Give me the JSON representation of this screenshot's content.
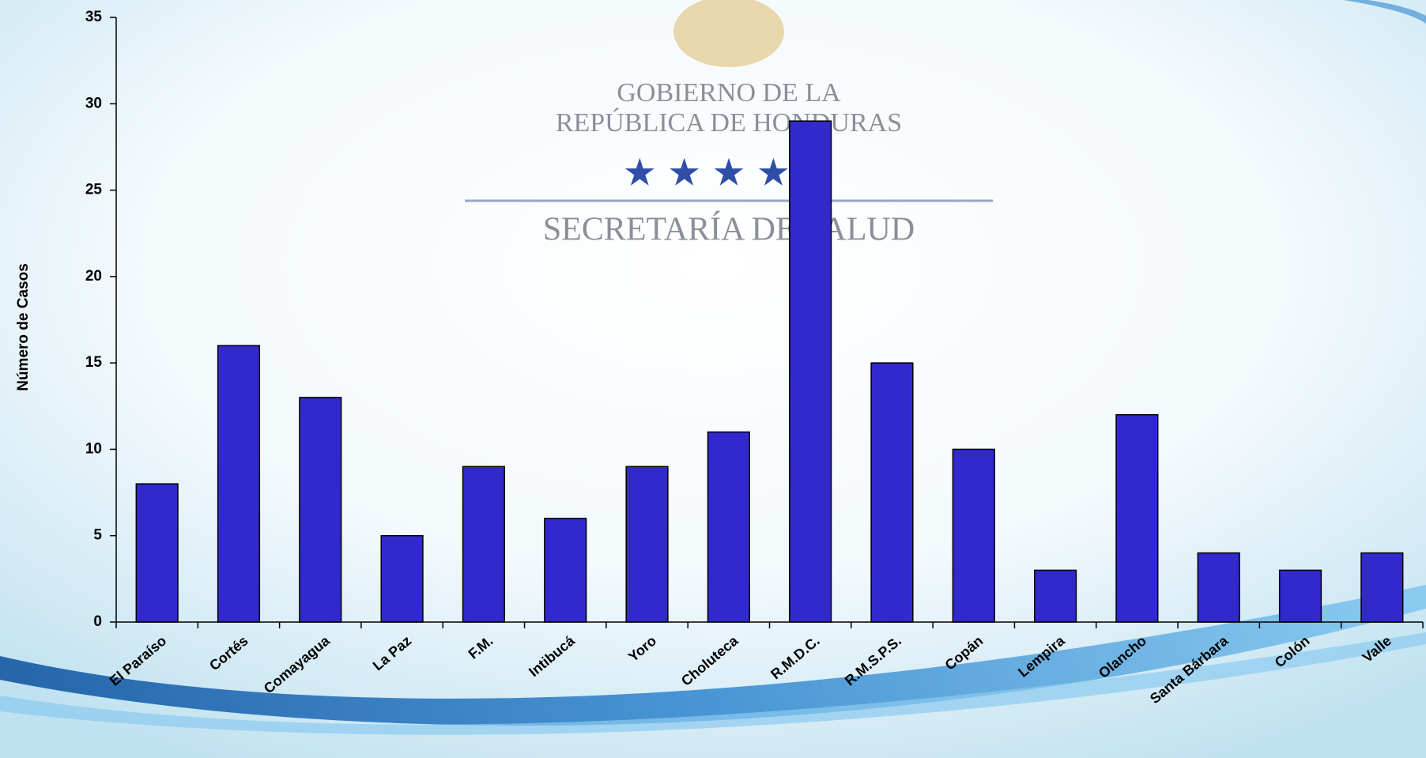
{
  "logo": [
    "GOBIERNO DE LA",
    "REPÚBLICA DE HONDURAS",
    "SECRETARÍA DE SALUD"
  ],
  "chart_data": {
    "type": "bar",
    "ylabel": "Número de Casos",
    "categories": [
      "El Paraíso",
      "Cortés",
      "Comayagua",
      "La Paz",
      "F.M.",
      "Intibucá",
      "Yoro",
      "Choluteca",
      "R.M.D.C.",
      "R.M.S.P.S.",
      "Copán",
      "Lempira",
      "Olancho",
      "Santa Bárbara",
      "Colón",
      "Valle"
    ],
    "values": [
      8,
      16,
      13,
      5,
      9,
      6,
      9,
      11,
      29,
      15,
      10,
      3,
      12,
      4,
      3,
      4
    ],
    "color": "#3129cc",
    "ylim": [
      0,
      35
    ],
    "yticks": [
      0,
      5,
      10,
      15,
      20,
      25,
      30,
      35
    ],
    "grid": false
  }
}
